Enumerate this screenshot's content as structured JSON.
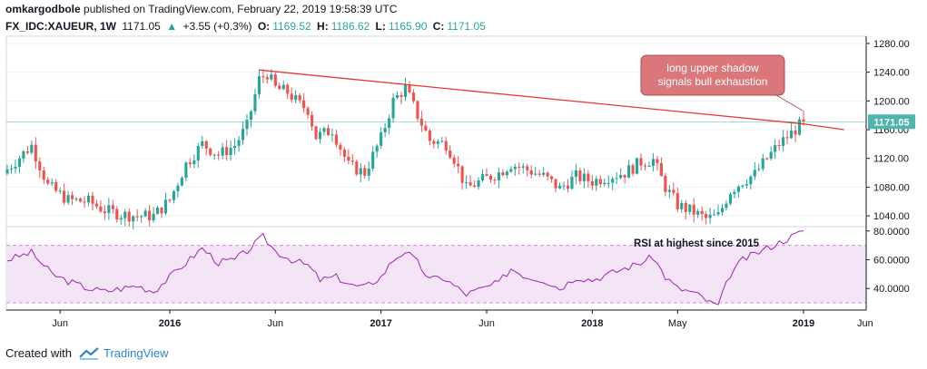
{
  "header": {
    "author": "omkargodbole",
    "published_text": "published on TradingView.com, February 22, 2019 19:58:39 UTC",
    "symbol": "FX_IDC:XAUEUR, 1W",
    "last": "1171.05",
    "change_arrow": "▲",
    "change": "+3.55 (+0.3%)",
    "o_label": "O:",
    "o_value": "1169.52",
    "h_label": "H:",
    "h_value": "1186.62",
    "l_label": "L:",
    "l_value": "1165.90",
    "c_label": "C:",
    "c_value": "1171.05"
  },
  "footer": {
    "created_with": "Created with",
    "brand": "TradingView"
  },
  "colors": {
    "up": "#26a69a",
    "down": "#ef5350",
    "trendline": "#e53935",
    "rsi_line": "#9c27b0",
    "rsi_band": "#f3e5f5",
    "price_label_bg": "#4db6ac",
    "callout_bg": "#d9777b",
    "callout_border": "#b04b50"
  },
  "chart_data": [
    {
      "type": "candlestick",
      "title": "XAUEUR weekly",
      "y_axis": {
        "ticks": [
          "1280.00",
          "1240.00",
          "1200.00",
          "1160.00",
          "1120.00",
          "1080.00",
          "1040.00"
        ],
        "range": [
          1025,
          1290
        ]
      },
      "x_axis": {
        "ticks": [
          "Jun",
          "2016",
          "Jun",
          "2017",
          "Jun",
          "2018",
          "May",
          "2019",
          "Jun"
        ]
      },
      "last_price_label": "1171.05",
      "close_anchors": [
        {
          "week": 0,
          "close": 1105
        },
        {
          "week": 6,
          "close": 1138
        },
        {
          "week": 10,
          "close": 1082
        },
        {
          "week": 15,
          "close": 1062
        },
        {
          "week": 20,
          "close": 1060
        },
        {
          "week": 24,
          "close": 1048
        },
        {
          "week": 28,
          "close": 1042
        },
        {
          "week": 32,
          "close": 1040
        },
        {
          "week": 36,
          "close": 1040
        },
        {
          "week": 40,
          "close": 1062
        },
        {
          "week": 44,
          "close": 1112
        },
        {
          "week": 48,
          "close": 1140
        },
        {
          "week": 52,
          "close": 1125
        },
        {
          "week": 56,
          "close": 1138
        },
        {
          "week": 59,
          "close": 1165
        },
        {
          "week": 62,
          "close": 1230
        },
        {
          "week": 64,
          "close": 1238
        },
        {
          "week": 66,
          "close": 1218
        },
        {
          "week": 69,
          "close": 1212
        },
        {
          "week": 72,
          "close": 1195
        },
        {
          "week": 74,
          "close": 1188
        },
        {
          "week": 76,
          "close": 1150
        },
        {
          "week": 80,
          "close": 1160
        },
        {
          "week": 84,
          "close": 1110
        },
        {
          "week": 88,
          "close": 1100
        },
        {
          "week": 92,
          "close": 1148
        },
        {
          "week": 95,
          "close": 1200
        },
        {
          "week": 98,
          "close": 1218
        },
        {
          "week": 101,
          "close": 1180
        },
        {
          "week": 104,
          "close": 1145
        },
        {
          "week": 108,
          "close": 1140
        },
        {
          "week": 110,
          "close": 1120
        },
        {
          "week": 113,
          "close": 1078
        },
        {
          "week": 117,
          "close": 1090
        },
        {
          "week": 121,
          "close": 1100
        },
        {
          "week": 124,
          "close": 1112
        },
        {
          "week": 128,
          "close": 1104
        },
        {
          "week": 132,
          "close": 1095
        },
        {
          "week": 136,
          "close": 1078
        },
        {
          "week": 140,
          "close": 1095
        },
        {
          "week": 144,
          "close": 1088
        },
        {
          "week": 148,
          "close": 1095
        },
        {
          "week": 152,
          "close": 1100
        },
        {
          "week": 156,
          "close": 1115
        },
        {
          "week": 159,
          "close": 1118
        },
        {
          "week": 162,
          "close": 1080
        },
        {
          "week": 165,
          "close": 1055
        },
        {
          "week": 169,
          "close": 1045
        },
        {
          "week": 172,
          "close": 1036
        },
        {
          "week": 175,
          "close": 1040
        },
        {
          "week": 178,
          "close": 1075
        },
        {
          "week": 181,
          "close": 1088
        },
        {
          "week": 184,
          "close": 1098
        },
        {
          "week": 187,
          "close": 1120
        },
        {
          "week": 190,
          "close": 1140
        },
        {
          "week": 193,
          "close": 1155
        },
        {
          "week": 196,
          "close": 1171.05
        }
      ],
      "trendline": [
        {
          "week": 62,
          "value": 1243
        },
        {
          "week": 196,
          "value": 1168
        },
        {
          "week": 206,
          "value": 1160
        }
      ],
      "annotation": "long upper shadow signals bull exhaustion"
    },
    {
      "type": "line",
      "title": "RSI",
      "y_axis": {
        "ticks": [
          "80.0000",
          "60.0000",
          "40.0000"
        ],
        "range": [
          25,
          83
        ]
      },
      "band": [
        30,
        70
      ],
      "annotation": "RSI at highest since 2015",
      "anchors": [
        {
          "week": 0,
          "value": 60
        },
        {
          "week": 6,
          "value": 65
        },
        {
          "week": 11,
          "value": 50
        },
        {
          "week": 15,
          "value": 45
        },
        {
          "week": 20,
          "value": 40
        },
        {
          "week": 24,
          "value": 38
        },
        {
          "week": 28,
          "value": 40
        },
        {
          "week": 32,
          "value": 42
        },
        {
          "week": 36,
          "value": 38
        },
        {
          "week": 40,
          "value": 48
        },
        {
          "week": 44,
          "value": 58
        },
        {
          "week": 48,
          "value": 68
        },
        {
          "week": 52,
          "value": 58
        },
        {
          "week": 56,
          "value": 60
        },
        {
          "week": 59,
          "value": 66
        },
        {
          "week": 63,
          "value": 76
        },
        {
          "week": 66,
          "value": 66
        },
        {
          "week": 70,
          "value": 60
        },
        {
          "week": 74,
          "value": 56
        },
        {
          "week": 77,
          "value": 46
        },
        {
          "week": 81,
          "value": 48
        },
        {
          "week": 85,
          "value": 42
        },
        {
          "week": 88,
          "value": 41
        },
        {
          "week": 92,
          "value": 48
        },
        {
          "week": 95,
          "value": 60
        },
        {
          "week": 98,
          "value": 66
        },
        {
          "week": 101,
          "value": 58
        },
        {
          "week": 104,
          "value": 46
        },
        {
          "week": 107,
          "value": 48
        },
        {
          "week": 110,
          "value": 42
        },
        {
          "week": 113,
          "value": 36
        },
        {
          "week": 117,
          "value": 40
        },
        {
          "week": 121,
          "value": 44
        },
        {
          "week": 124,
          "value": 54
        },
        {
          "week": 128,
          "value": 48
        },
        {
          "week": 132,
          "value": 46
        },
        {
          "week": 136,
          "value": 40
        },
        {
          "week": 140,
          "value": 48
        },
        {
          "week": 144,
          "value": 46
        },
        {
          "week": 148,
          "value": 50
        },
        {
          "week": 152,
          "value": 54
        },
        {
          "week": 156,
          "value": 58
        },
        {
          "week": 159,
          "value": 62
        },
        {
          "week": 162,
          "value": 48
        },
        {
          "week": 165,
          "value": 40
        },
        {
          "week": 168,
          "value": 38
        },
        {
          "week": 171,
          "value": 34
        },
        {
          "week": 173,
          "value": 30
        },
        {
          "week": 175,
          "value": 28
        },
        {
          "week": 178,
          "value": 50
        },
        {
          "week": 181,
          "value": 60
        },
        {
          "week": 184,
          "value": 64
        },
        {
          "week": 187,
          "value": 68
        },
        {
          "week": 190,
          "value": 72
        },
        {
          "week": 193,
          "value": 76
        },
        {
          "week": 196,
          "value": 80
        }
      ]
    }
  ]
}
